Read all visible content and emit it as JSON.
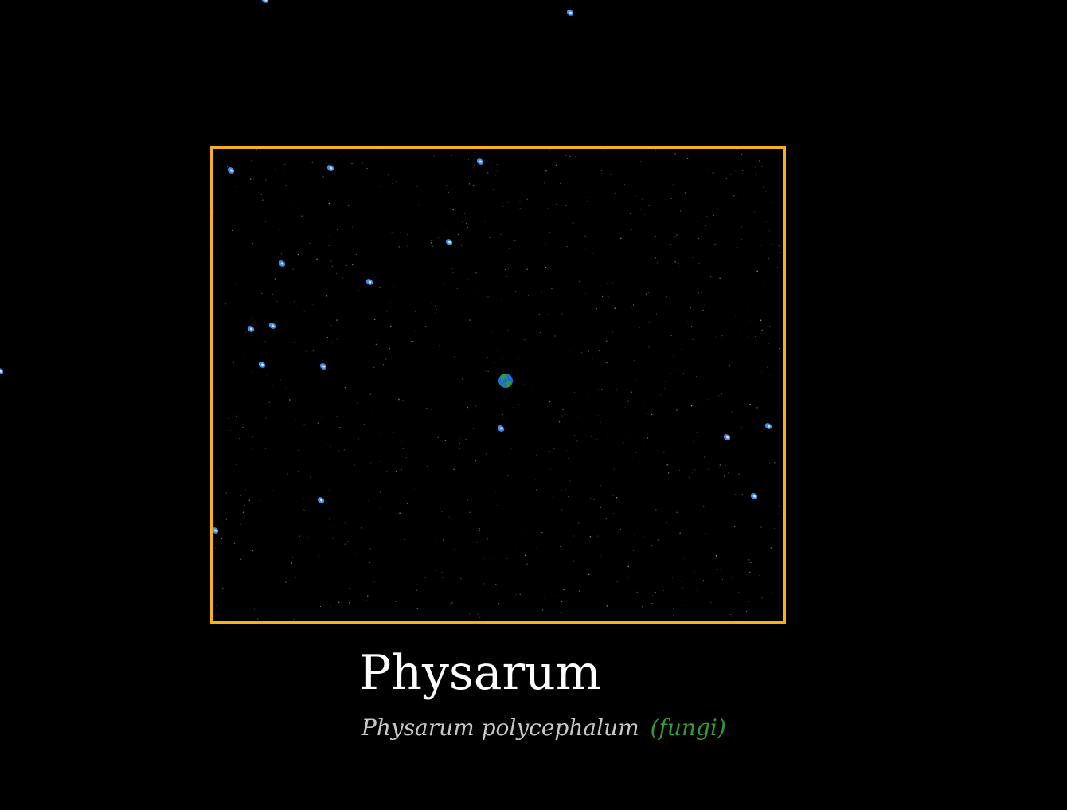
{
  "species": {
    "common_name": "Physarum",
    "scientific_name": "Physarum polycephalum",
    "kingdom": "(fungi)"
  },
  "colors": {
    "background": "#000000",
    "viewport_border": "#f7b21a",
    "scientific_name": "#c8c8c8",
    "kingdom": "#2f9b3c",
    "food_particle": "#3f8fe8",
    "organism_green": "#2f9b3c",
    "organism_blue": "#1f6fd1"
  },
  "icons": {
    "organism": "earth-globe-icon",
    "food": "blue-droplet-icon"
  }
}
